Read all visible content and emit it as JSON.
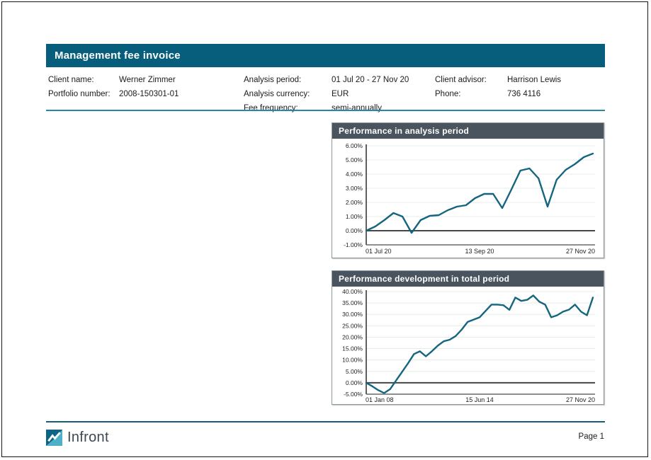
{
  "header": {
    "title": "Management fee invoice"
  },
  "client_info": {
    "columns": [
      {
        "rows": [
          {
            "label": "Client name:",
            "value": "Werner Zimmer"
          },
          {
            "label": "Portfolio number:",
            "value": "2008-150301-01"
          }
        ]
      },
      {
        "rows": [
          {
            "label": "Analysis period:",
            "value": "01 Jul 20 - 27 Nov 20"
          },
          {
            "label": "Analysis currency:",
            "value": "EUR"
          },
          {
            "label": "Fee frequency:",
            "value": "semi-annually"
          }
        ]
      },
      {
        "rows": [
          {
            "label": "Client advisor:",
            "value": "Harrison Lewis"
          },
          {
            "label": "Phone:",
            "value": "736 4116"
          }
        ]
      }
    ]
  },
  "footer": {
    "brand": "Infront",
    "page_label": "Page 1"
  },
  "colors": {
    "header_bar": "#075e7c",
    "section_bar": "#49545f",
    "line": "#16657f",
    "divider": "#2c86a4",
    "footer_rule": "#145f7b",
    "grid": "#e4ede8",
    "zero_line": "#454545",
    "axis": "#8f8f8f",
    "tick_text": "#1f1f1f"
  },
  "chart_data": [
    {
      "type": "line",
      "title": "Performance in analysis period",
      "xlabel": "",
      "ylabel": "",
      "ylim": [
        -1,
        6
      ],
      "y_step": 1,
      "y_tick_suffix": "%",
      "grid": true,
      "legend": false,
      "x_ticks": [
        "01 Jul 20",
        "13 Sep 20",
        "27 Nov 20"
      ],
      "values": [
        0.0,
        0.3,
        0.75,
        1.25,
        1.0,
        -0.15,
        0.75,
        1.05,
        1.1,
        1.45,
        1.7,
        1.8,
        2.3,
        2.6,
        2.6,
        1.6,
        2.9,
        4.25,
        4.4,
        3.7,
        1.7,
        3.6,
        4.3,
        4.7,
        5.2,
        5.45
      ]
    },
    {
      "type": "line",
      "title": "Performance development in total period",
      "xlabel": "",
      "ylabel": "",
      "ylim": [
        -5,
        40
      ],
      "y_step": 5,
      "y_tick_suffix": "%",
      "grid": true,
      "legend": false,
      "x_ticks": [
        "01 Jan 08",
        "15 Jun 14",
        "27 Nov 20"
      ],
      "values": [
        0,
        -1.5,
        -3.2,
        -4.5,
        -2.8,
        1,
        4.7,
        8.5,
        12.6,
        13.8,
        11.6,
        13.8,
        16.3,
        18.2,
        18.9,
        20.5,
        23.3,
        26.7,
        27.7,
        28.7,
        31.5,
        34.3,
        34.3,
        34.0,
        32.0,
        37.4,
        35.9,
        36.4,
        38.3,
        35.6,
        34.3,
        28.7,
        29.6,
        31.2,
        32.1,
        34.3,
        31.2,
        29.6,
        37.4
      ]
    }
  ]
}
